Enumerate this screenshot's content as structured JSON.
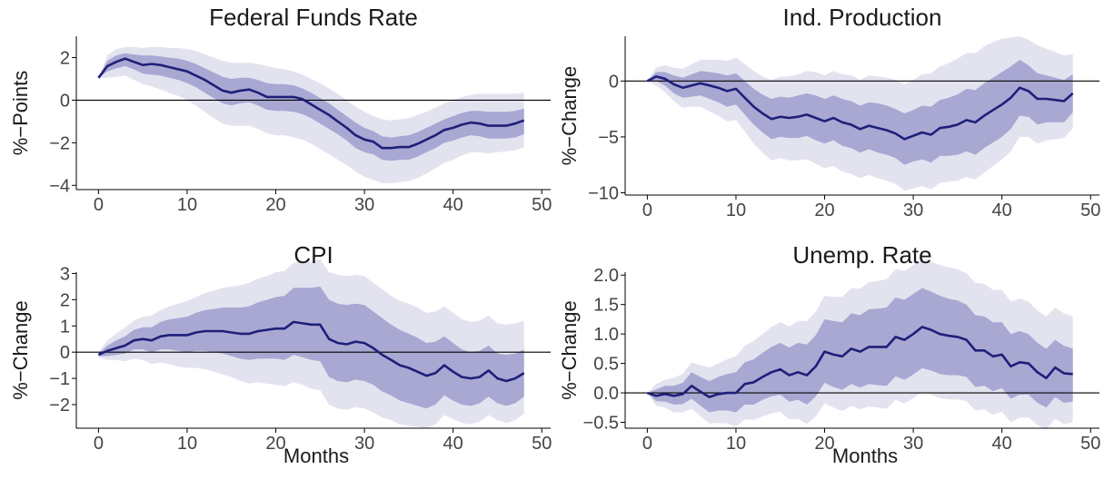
{
  "colors": {
    "line": "#1f1f7a",
    "band_inner": "#9e9ece",
    "band_outer": "#e3e3f0",
    "axis": "#000000",
    "text": "#1a1a1a"
  },
  "chart_data": [
    {
      "type": "area",
      "title": "Federal Funds Rate",
      "xlabel": "",
      "ylabel": "%−Points",
      "xlim": [
        -2.5,
        51
      ],
      "ylim": [
        -4.2,
        3
      ],
      "xticks": [
        0,
        10,
        20,
        30,
        40,
        50
      ],
      "xtick_labels": [
        "0",
        "10",
        "20",
        "30",
        "40",
        "50"
      ],
      "yticks": [
        2,
        0,
        -2,
        -4
      ],
      "ytick_labels": [
        "2",
        "0",
        "−2",
        "−4"
      ],
      "zero_line": true,
      "grid": false,
      "x": [
        0,
        1,
        2,
        3,
        4,
        5,
        6,
        7,
        8,
        9,
        10,
        11,
        12,
        13,
        14,
        15,
        16,
        17,
        18,
        19,
        20,
        21,
        22,
        23,
        24,
        25,
        26,
        27,
        28,
        29,
        30,
        31,
        32,
        33,
        34,
        35,
        36,
        37,
        38,
        39,
        40,
        41,
        42,
        43,
        44,
        45,
        46,
        47,
        48
      ],
      "median": [
        1.05,
        1.6,
        1.8,
        1.95,
        1.8,
        1.65,
        1.7,
        1.65,
        1.55,
        1.45,
        1.35,
        1.15,
        0.95,
        0.7,
        0.45,
        0.35,
        0.45,
        0.5,
        0.35,
        0.15,
        0.15,
        0.15,
        0.15,
        0.05,
        -0.2,
        -0.45,
        -0.7,
        -1.0,
        -1.3,
        -1.65,
        -1.85,
        -1.95,
        -2.25,
        -2.25,
        -2.2,
        -2.2,
        -2.05,
        -1.85,
        -1.65,
        -1.4,
        -1.3,
        -1.15,
        -1.05,
        -1.1,
        -1.2,
        -1.2,
        -1.2,
        -1.1,
        -0.95
      ],
      "band_inner_upper": [
        1.05,
        1.85,
        2.1,
        2.2,
        2.15,
        2.1,
        2.1,
        2.05,
        2.0,
        1.95,
        1.85,
        1.7,
        1.5,
        1.3,
        1.1,
        1.0,
        1.05,
        1.05,
        0.95,
        0.8,
        0.75,
        0.75,
        0.7,
        0.55,
        0.35,
        0.1,
        -0.15,
        -0.45,
        -0.75,
        -1.05,
        -1.3,
        -1.45,
        -1.7,
        -1.75,
        -1.7,
        -1.65,
        -1.5,
        -1.3,
        -1.1,
        -0.9,
        -0.75,
        -0.6,
        -0.5,
        -0.5,
        -0.55,
        -0.55,
        -0.55,
        -0.5,
        -0.4
      ],
      "band_inner_lower": [
        1.05,
        1.35,
        1.5,
        1.6,
        1.45,
        1.25,
        1.2,
        1.15,
        1.05,
        0.95,
        0.8,
        0.6,
        0.35,
        0.1,
        -0.15,
        -0.25,
        -0.15,
        -0.1,
        -0.25,
        -0.45,
        -0.5,
        -0.5,
        -0.55,
        -0.65,
        -0.85,
        -1.1,
        -1.35,
        -1.6,
        -1.9,
        -2.25,
        -2.45,
        -2.55,
        -2.8,
        -2.85,
        -2.8,
        -2.8,
        -2.65,
        -2.45,
        -2.25,
        -2.0,
        -1.9,
        -1.75,
        -1.65,
        -1.7,
        -1.8,
        -1.8,
        -1.8,
        -1.75,
        -1.6
      ],
      "band_outer_upper": [
        1.05,
        2.1,
        2.4,
        2.5,
        2.5,
        2.45,
        2.5,
        2.5,
        2.45,
        2.45,
        2.4,
        2.3,
        2.15,
        2.0,
        1.85,
        1.75,
        1.75,
        1.75,
        1.7,
        1.6,
        1.5,
        1.45,
        1.35,
        1.2,
        1.0,
        0.8,
        0.55,
        0.3,
        0.0,
        -0.3,
        -0.55,
        -0.75,
        -0.9,
        -0.95,
        -0.9,
        -0.85,
        -0.7,
        -0.55,
        -0.35,
        -0.15,
        0.0,
        0.15,
        0.25,
        0.3,
        0.3,
        0.3,
        0.3,
        0.3,
        0.35
      ],
      "band_outer_lower": [
        1.05,
        1.05,
        1.1,
        1.15,
        0.95,
        0.75,
        0.65,
        0.5,
        0.35,
        0.2,
        0.0,
        -0.25,
        -0.55,
        -0.85,
        -1.1,
        -1.2,
        -1.2,
        -1.2,
        -1.35,
        -1.55,
        -1.65,
        -1.65,
        -1.75,
        -1.85,
        -2.05,
        -2.3,
        -2.55,
        -2.8,
        -3.05,
        -3.35,
        -3.6,
        -3.75,
        -3.9,
        -3.9,
        -3.85,
        -3.8,
        -3.65,
        -3.45,
        -3.2,
        -2.95,
        -2.8,
        -2.6,
        -2.45,
        -2.45,
        -2.5,
        -2.45,
        -2.4,
        -2.35,
        -2.2
      ]
    },
    {
      "type": "area",
      "title": "Ind. Production",
      "xlabel": "",
      "ylabel": "%−Change",
      "xlim": [
        -2.5,
        51
      ],
      "ylim": [
        -10.2,
        4
      ],
      "xticks": [
        0,
        10,
        20,
        30,
        40,
        50
      ],
      "xtick_labels": [
        "0",
        "10",
        "20",
        "30",
        "40",
        "50"
      ],
      "yticks": [
        0,
        -5,
        -10
      ],
      "ytick_labels": [
        "0",
        "−5",
        "−10"
      ],
      "zero_line": true,
      "grid": false,
      "x": [
        0,
        1,
        2,
        3,
        4,
        5,
        6,
        7,
        8,
        9,
        10,
        11,
        12,
        13,
        14,
        15,
        16,
        17,
        18,
        19,
        20,
        21,
        22,
        23,
        24,
        25,
        26,
        27,
        28,
        29,
        30,
        31,
        32,
        33,
        34,
        35,
        36,
        37,
        38,
        39,
        40,
        41,
        42,
        43,
        44,
        45,
        46,
        47,
        48
      ],
      "median": [
        0.0,
        0.4,
        0.2,
        -0.3,
        -0.6,
        -0.4,
        -0.2,
        -0.4,
        -0.6,
        -0.9,
        -0.7,
        -1.5,
        -2.3,
        -2.9,
        -3.4,
        -3.2,
        -3.3,
        -3.2,
        -3.0,
        -3.3,
        -3.6,
        -3.3,
        -3.7,
        -3.9,
        -4.3,
        -4.0,
        -4.2,
        -4.4,
        -4.7,
        -5.2,
        -4.9,
        -4.6,
        -4.8,
        -4.2,
        -4.1,
        -3.9,
        -3.5,
        -3.7,
        -3.1,
        -2.6,
        -2.1,
        -1.5,
        -0.6,
        -0.9,
        -1.6,
        -1.6,
        -1.7,
        -1.8,
        -1.1
      ],
      "band_inner_upper": [
        0.0,
        0.8,
        0.8,
        0.5,
        0.3,
        0.6,
        0.9,
        0.8,
        0.7,
        0.5,
        0.7,
        0.0,
        -0.7,
        -1.2,
        -1.6,
        -1.4,
        -1.5,
        -1.3,
        -1.1,
        -1.3,
        -1.6,
        -1.3,
        -1.6,
        -1.8,
        -2.2,
        -1.9,
        -2.0,
        -2.2,
        -2.5,
        -2.9,
        -2.6,
        -2.2,
        -2.3,
        -1.7,
        -1.5,
        -1.2,
        -0.7,
        -0.8,
        -0.2,
        0.3,
        0.8,
        1.3,
        1.9,
        1.4,
        0.7,
        0.5,
        0.3,
        0.1,
        0.6
      ],
      "band_inner_lower": [
        0.0,
        0.0,
        -0.4,
        -1.1,
        -1.5,
        -1.4,
        -1.3,
        -1.6,
        -1.9,
        -2.3,
        -2.1,
        -3.0,
        -3.9,
        -4.6,
        -5.2,
        -5.0,
        -5.1,
        -5.1,
        -4.9,
        -5.3,
        -5.6,
        -5.3,
        -5.8,
        -6.0,
        -6.4,
        -6.1,
        -6.4,
        -6.6,
        -6.9,
        -7.5,
        -7.2,
        -7.0,
        -7.3,
        -6.7,
        -6.7,
        -6.6,
        -6.3,
        -6.6,
        -6.0,
        -5.5,
        -5.0,
        -4.3,
        -3.1,
        -3.2,
        -3.9,
        -3.7,
        -3.7,
        -3.7,
        -2.8
      ],
      "band_outer_upper": [
        0.0,
        1.2,
        1.4,
        1.2,
        1.1,
        1.5,
        1.9,
        1.9,
        1.9,
        1.8,
        2.1,
        1.5,
        0.9,
        0.4,
        0.1,
        0.4,
        0.4,
        0.6,
        0.9,
        0.8,
        0.5,
        0.9,
        0.6,
        0.5,
        0.1,
        0.5,
        0.4,
        0.3,
        0.1,
        -0.3,
        0.1,
        0.6,
        0.7,
        1.3,
        1.6,
        2.0,
        2.5,
        2.5,
        3.1,
        3.5,
        3.8,
        3.9,
        4.0,
        3.7,
        3.2,
        2.9,
        2.6,
        2.3,
        2.4
      ],
      "band_outer_lower": [
        0.0,
        -0.4,
        -1.0,
        -1.8,
        -2.4,
        -2.3,
        -2.3,
        -2.7,
        -3.1,
        -3.6,
        -3.5,
        -4.5,
        -5.6,
        -6.4,
        -7.1,
        -6.9,
        -7.1,
        -7.1,
        -7.0,
        -7.4,
        -7.8,
        -7.6,
        -8.1,
        -8.3,
        -8.7,
        -8.4,
        -8.7,
        -8.9,
        -9.2,
        -9.8,
        -9.6,
        -9.4,
        -9.7,
        -9.1,
        -9.0,
        -8.9,
        -8.6,
        -8.8,
        -8.2,
        -7.6,
        -7.0,
        -6.3,
        -5.0,
        -5.0,
        -5.6,
        -5.3,
        -5.2,
        -5.1,
        -4.2
      ]
    },
    {
      "type": "area",
      "title": "CPI",
      "xlabel": "Months",
      "ylabel": "%−Change",
      "xlim": [
        -2.5,
        51
      ],
      "ylim": [
        -2.9,
        3.05
      ],
      "xticks": [
        0,
        10,
        20,
        30,
        40,
        50
      ],
      "xtick_labels": [
        "0",
        "10",
        "20",
        "30",
        "40",
        "50"
      ],
      "yticks": [
        3,
        2,
        1,
        0,
        -1,
        -2
      ],
      "ytick_labels": [
        "3",
        "2",
        "1",
        "0",
        "−1",
        "−2"
      ],
      "zero_line": true,
      "grid": false,
      "x": [
        0,
        1,
        2,
        3,
        4,
        5,
        6,
        7,
        8,
        9,
        10,
        11,
        12,
        13,
        14,
        15,
        16,
        17,
        18,
        19,
        20,
        21,
        22,
        23,
        24,
        25,
        26,
        27,
        28,
        29,
        30,
        31,
        32,
        33,
        34,
        35,
        36,
        37,
        38,
        39,
        40,
        41,
        42,
        43,
        44,
        45,
        46,
        47,
        48
      ],
      "median": [
        -0.1,
        0.05,
        0.15,
        0.25,
        0.45,
        0.5,
        0.45,
        0.6,
        0.65,
        0.65,
        0.65,
        0.75,
        0.8,
        0.8,
        0.8,
        0.75,
        0.7,
        0.7,
        0.8,
        0.85,
        0.9,
        0.9,
        1.15,
        1.1,
        1.05,
        1.05,
        0.5,
        0.35,
        0.3,
        0.4,
        0.35,
        0.15,
        -0.1,
        -0.3,
        -0.5,
        -0.6,
        -0.75,
        -0.9,
        -0.8,
        -0.5,
        -0.75,
        -0.95,
        -1.0,
        -0.95,
        -0.7,
        -1.0,
        -1.1,
        -1.0,
        -0.8
      ],
      "band_inner_upper": [
        -0.05,
        0.25,
        0.45,
        0.6,
        0.85,
        0.95,
        0.95,
        1.15,
        1.25,
        1.3,
        1.35,
        1.5,
        1.6,
        1.65,
        1.7,
        1.7,
        1.7,
        1.75,
        1.9,
        2.0,
        2.1,
        2.15,
        2.45,
        2.45,
        2.45,
        2.5,
        2.0,
        1.85,
        1.8,
        1.85,
        1.8,
        1.55,
        1.3,
        1.05,
        0.85,
        0.7,
        0.55,
        0.35,
        0.4,
        0.6,
        0.35,
        0.1,
        0.0,
        0.05,
        0.25,
        -0.05,
        -0.1,
        -0.05,
        0.1
      ],
      "band_inner_lower": [
        -0.15,
        -0.15,
        -0.1,
        -0.05,
        0.1,
        0.1,
        0.0,
        0.1,
        0.1,
        0.05,
        0.0,
        0.05,
        0.05,
        0.0,
        -0.05,
        -0.15,
        -0.25,
        -0.3,
        -0.25,
        -0.25,
        -0.25,
        -0.3,
        -0.1,
        -0.2,
        -0.3,
        -0.35,
        -0.95,
        -1.1,
        -1.15,
        -1.05,
        -1.1,
        -1.25,
        -1.5,
        -1.65,
        -1.85,
        -1.95,
        -2.05,
        -2.15,
        -2.0,
        -1.65,
        -1.85,
        -2.0,
        -2.05,
        -1.95,
        -1.7,
        -1.95,
        -2.05,
        -1.95,
        -1.7
      ],
      "band_outer_upper": [
        0.0,
        0.45,
        0.7,
        0.95,
        1.2,
        1.35,
        1.4,
        1.6,
        1.75,
        1.85,
        1.95,
        2.1,
        2.25,
        2.35,
        2.45,
        2.5,
        2.55,
        2.65,
        2.8,
        2.9,
        3.05,
        3.1,
        3.4,
        3.45,
        3.45,
        3.55,
        3.05,
        2.95,
        2.9,
        2.95,
        2.9,
        2.65,
        2.4,
        2.15,
        1.95,
        1.85,
        1.7,
        1.5,
        1.55,
        1.75,
        1.5,
        1.25,
        1.15,
        1.2,
        1.4,
        1.1,
        1.05,
        1.1,
        1.2
      ],
      "band_outer_lower": [
        -0.2,
        -0.3,
        -0.3,
        -0.35,
        -0.25,
        -0.3,
        -0.45,
        -0.4,
        -0.45,
        -0.55,
        -0.6,
        -0.6,
        -0.65,
        -0.75,
        -0.85,
        -0.95,
        -1.1,
        -1.2,
        -1.15,
        -1.2,
        -1.25,
        -1.3,
        -1.15,
        -1.25,
        -1.4,
        -1.45,
        -2.0,
        -2.15,
        -2.2,
        -2.1,
        -2.15,
        -2.3,
        -2.5,
        -2.6,
        -2.75,
        -2.8,
        -2.85,
        -2.9,
        -2.75,
        -2.4,
        -2.55,
        -2.7,
        -2.75,
        -2.65,
        -2.4,
        -2.6,
        -2.7,
        -2.6,
        -2.35
      ]
    },
    {
      "type": "area",
      "title": "Unemp. Rate",
      "xlabel": "Months",
      "ylabel": "%−Change",
      "xlim": [
        -2.5,
        51
      ],
      "ylim": [
        -0.6,
        2.05
      ],
      "xticks": [
        0,
        10,
        20,
        30,
        40,
        50
      ],
      "xtick_labels": [
        "0",
        "10",
        "20",
        "30",
        "40",
        "50"
      ],
      "yticks": [
        2.0,
        1.5,
        1.0,
        0.5,
        0.0,
        -0.5
      ],
      "ytick_labels": [
        "2.0",
        "1.5",
        "1.0",
        "0.5",
        "0.0",
        "−0.5"
      ],
      "zero_line": true,
      "grid": false,
      "x": [
        0,
        1,
        2,
        3,
        4,
        5,
        6,
        7,
        8,
        9,
        10,
        11,
        12,
        13,
        14,
        15,
        16,
        17,
        18,
        19,
        20,
        21,
        22,
        23,
        24,
        25,
        26,
        27,
        28,
        29,
        30,
        31,
        32,
        33,
        34,
        35,
        36,
        37,
        38,
        39,
        40,
        41,
        42,
        43,
        44,
        45,
        46,
        47,
        48
      ],
      "median": [
        0.0,
        -0.05,
        -0.02,
        -0.05,
        -0.02,
        0.12,
        0.02,
        -0.07,
        -0.02,
        0.0,
        0.0,
        0.15,
        0.18,
        0.27,
        0.35,
        0.4,
        0.3,
        0.35,
        0.3,
        0.45,
        0.7,
        0.65,
        0.62,
        0.75,
        0.7,
        0.78,
        0.78,
        0.78,
        0.95,
        0.9,
        1.0,
        1.12,
        1.07,
        1.0,
        0.97,
        0.95,
        0.9,
        0.72,
        0.72,
        0.62,
        0.65,
        0.45,
        0.52,
        0.5,
        0.35,
        0.25,
        0.43,
        0.33,
        0.32
      ],
      "band_inner_upper": [
        0.0,
        0.06,
        0.12,
        0.12,
        0.17,
        0.35,
        0.27,
        0.2,
        0.27,
        0.32,
        0.35,
        0.52,
        0.57,
        0.68,
        0.78,
        0.85,
        0.77,
        0.85,
        0.82,
        0.98,
        1.25,
        1.22,
        1.2,
        1.35,
        1.32,
        1.42,
        1.43,
        1.45,
        1.62,
        1.58,
        1.68,
        1.78,
        1.72,
        1.65,
        1.6,
        1.57,
        1.5,
        1.32,
        1.3,
        1.2,
        1.2,
        1.0,
        1.05,
        1.0,
        0.85,
        0.75,
        0.9,
        0.8,
        0.75
      ],
      "band_inner_lower": [
        0.0,
        -0.14,
        -0.15,
        -0.2,
        -0.19,
        -0.1,
        -0.22,
        -0.33,
        -0.3,
        -0.3,
        -0.33,
        -0.2,
        -0.2,
        -0.12,
        -0.06,
        -0.03,
        -0.15,
        -0.12,
        -0.2,
        -0.06,
        0.17,
        0.1,
        0.05,
        0.15,
        0.09,
        0.15,
        0.13,
        0.12,
        0.28,
        0.22,
        0.31,
        0.42,
        0.38,
        0.32,
        0.3,
        0.3,
        0.27,
        0.1,
        0.12,
        0.03,
        0.08,
        -0.1,
        -0.03,
        -0.03,
        -0.17,
        -0.25,
        -0.07,
        -0.17,
        -0.15
      ],
      "band_outer_upper": [
        0.0,
        0.15,
        0.22,
        0.26,
        0.32,
        0.52,
        0.47,
        0.43,
        0.5,
        0.57,
        0.62,
        0.8,
        0.88,
        1.0,
        1.12,
        1.2,
        1.13,
        1.22,
        1.22,
        1.38,
        1.65,
        1.63,
        1.63,
        1.78,
        1.77,
        1.88,
        1.9,
        1.93,
        2.1,
        2.07,
        2.17,
        2.28,
        2.23,
        2.17,
        2.13,
        2.1,
        2.03,
        1.87,
        1.85,
        1.75,
        1.75,
        1.55,
        1.6,
        1.55,
        1.4,
        1.3,
        1.45,
        1.35,
        1.3
      ],
      "band_outer_lower": [
        0.0,
        -0.22,
        -0.25,
        -0.33,
        -0.33,
        -0.27,
        -0.4,
        -0.52,
        -0.51,
        -0.52,
        -0.57,
        -0.45,
        -0.46,
        -0.4,
        -0.35,
        -0.32,
        -0.45,
        -0.44,
        -0.53,
        -0.4,
        -0.18,
        -0.25,
        -0.31,
        -0.22,
        -0.28,
        -0.23,
        -0.25,
        -0.27,
        -0.12,
        -0.18,
        -0.09,
        0.01,
        -0.03,
        -0.09,
        -0.11,
        -0.11,
        -0.14,
        -0.3,
        -0.28,
        -0.37,
        -0.32,
        -0.5,
        -0.42,
        -0.42,
        -0.55,
        -0.62,
        -0.44,
        -0.53,
        -0.5
      ]
    }
  ]
}
